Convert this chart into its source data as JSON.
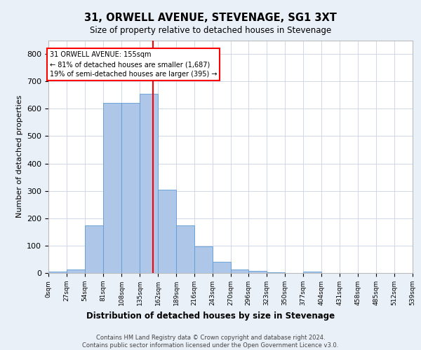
{
  "title": "31, ORWELL AVENUE, STEVENAGE, SG1 3XT",
  "subtitle": "Size of property relative to detached houses in Stevenage",
  "xlabel": "Distribution of detached houses by size in Stevenage",
  "ylabel": "Number of detached properties",
  "bin_edges": [
    0,
    27,
    54,
    81,
    108,
    135,
    162,
    189,
    216,
    243,
    270,
    296,
    323,
    350,
    377,
    404,
    431,
    458,
    485,
    512,
    539
  ],
  "bar_heights": [
    5,
    13,
    175,
    620,
    620,
    655,
    305,
    175,
    97,
    40,
    13,
    8,
    3,
    0,
    5,
    0,
    0,
    0,
    0,
    0
  ],
  "bar_color": "#aec6e8",
  "bar_edge_color": "#5b9bd5",
  "grid_color": "#d0d8e8",
  "property_size": 155,
  "annotation_text": "31 ORWELL AVENUE: 155sqm\n← 81% of detached houses are smaller (1,687)\n19% of semi-detached houses are larger (395) →",
  "annotation_box_color": "white",
  "annotation_box_edge_color": "red",
  "vline_color": "red",
  "ylim": [
    0,
    850
  ],
  "yticks": [
    0,
    100,
    200,
    300,
    400,
    500,
    600,
    700,
    800
  ],
  "footer_text": "Contains HM Land Registry data © Crown copyright and database right 2024.\nContains public sector information licensed under the Open Government Licence v3.0.",
  "background_color": "#eaf0f8",
  "plot_background_color": "white"
}
